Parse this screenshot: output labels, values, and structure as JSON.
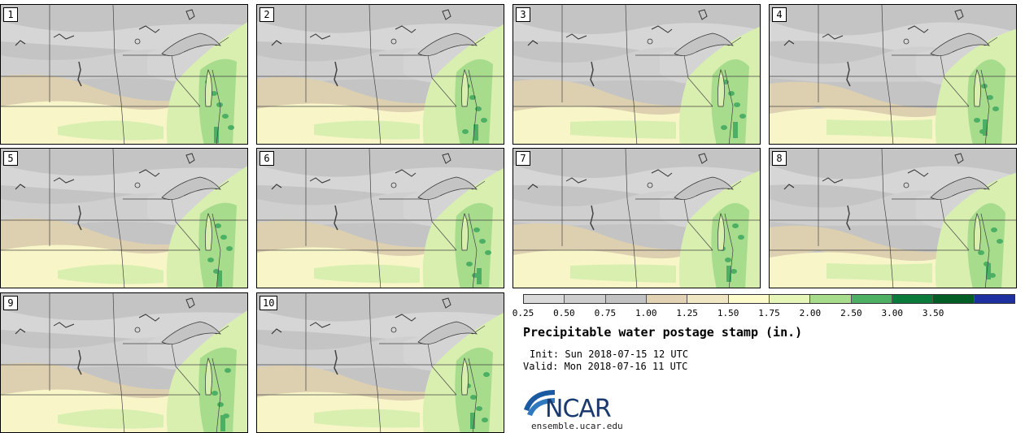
{
  "panels": [
    {
      "label": "1"
    },
    {
      "label": "2"
    },
    {
      "label": "3"
    },
    {
      "label": "4"
    },
    {
      "label": "5"
    },
    {
      "label": "6"
    },
    {
      "label": "7"
    },
    {
      "label": "8"
    },
    {
      "label": "9"
    },
    {
      "label": "10"
    }
  ],
  "colorbar": {
    "colors": [
      "#d9d9d9",
      "#cdcdcd",
      "#c2c2c2",
      "#e0d2b2",
      "#f0e6c4",
      "#fbfbcc",
      "#e6f5b8",
      "#a6dc8c",
      "#4caf64",
      "#0b7a3a",
      "#045d24",
      "#1e2fa0"
    ],
    "labels": [
      "0.25",
      "0.50",
      "0.75",
      "1.00",
      "1.25",
      "1.50",
      "1.75",
      "2.00",
      "2.50",
      "3.00",
      "3.50"
    ]
  },
  "title": "Precipitable water postage stamp (in.)",
  "init": "Init: Sun 2018-07-15 12 UTC",
  "valid": "Valid: Mon 2018-07-16 11 UTC",
  "logo": {
    "text": "NCAR",
    "url": "ensemble.ucar.edu",
    "brand_color": "#1a5aa0"
  }
}
